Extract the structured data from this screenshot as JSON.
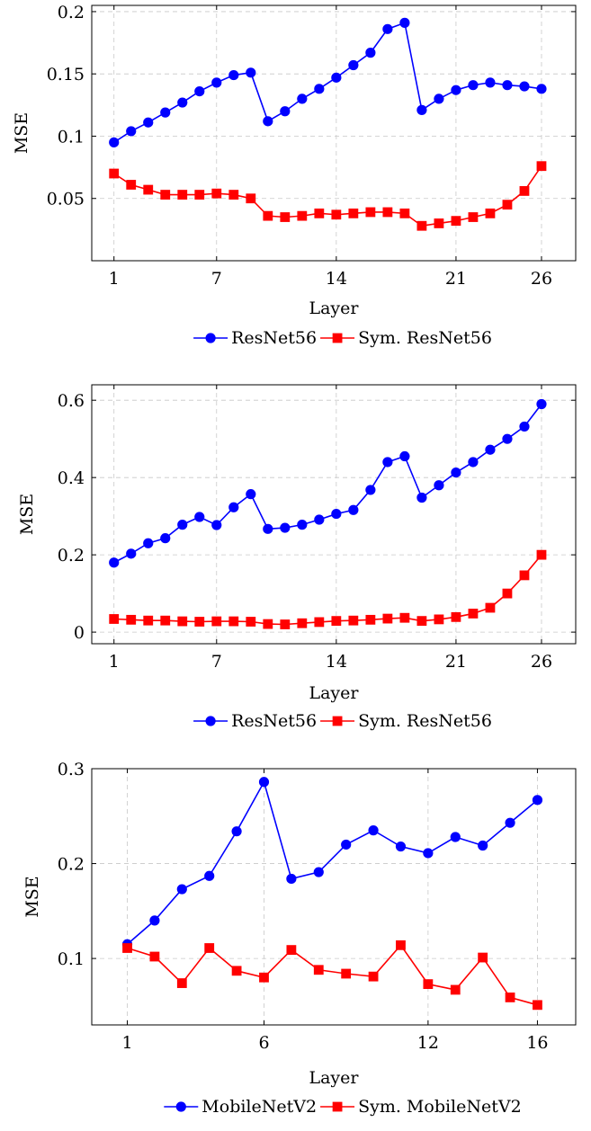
{
  "chart_data": [
    {
      "type": "line",
      "xlabel": "Layer",
      "ylabel": "MSE",
      "xlim": [
        -0.3,
        28.0
      ],
      "ylim": [
        0.0,
        0.205
      ],
      "xticks": [
        1,
        7,
        14,
        21,
        26
      ],
      "yticks": [
        0.05,
        0.1,
        0.15,
        0.2
      ],
      "ytick_labels": [
        "0.05",
        "0.1",
        "0.15",
        "0.2"
      ],
      "grid": true,
      "legend": "bottom-center",
      "x": [
        1,
        2,
        3,
        4,
        5,
        6,
        7,
        8,
        9,
        10,
        11,
        12,
        13,
        14,
        15,
        16,
        17,
        18,
        19,
        20,
        21,
        22,
        23,
        24,
        25,
        26
      ],
      "series": [
        {
          "name": "ResNet56",
          "color": "#0000ff",
          "marker": "circle",
          "values": [
            0.095,
            0.104,
            0.111,
            0.119,
            0.127,
            0.136,
            0.143,
            0.149,
            0.151,
            0.112,
            0.12,
            0.13,
            0.138,
            0.147,
            0.157,
            0.167,
            0.186,
            0.191,
            0.121,
            0.13,
            0.137,
            0.141,
            0.143,
            0.141,
            0.14,
            0.138
          ]
        },
        {
          "name": "Sym. ResNet56",
          "color": "#ff0000",
          "marker": "square",
          "values": [
            0.07,
            0.061,
            0.057,
            0.053,
            0.053,
            0.053,
            0.054,
            0.053,
            0.05,
            0.036,
            0.035,
            0.036,
            0.038,
            0.037,
            0.038,
            0.039,
            0.039,
            0.038,
            0.028,
            0.03,
            0.032,
            0.035,
            0.038,
            0.045,
            0.056,
            0.076
          ]
        }
      ]
    },
    {
      "type": "line",
      "xlabel": "Layer",
      "ylabel": "MSE",
      "xlim": [
        -0.3,
        28.0
      ],
      "ylim": [
        -0.03,
        0.64
      ],
      "xticks": [
        1,
        7,
        14,
        21,
        26
      ],
      "yticks": [
        0,
        0.2,
        0.4,
        0.6
      ],
      "ytick_labels": [
        "0",
        "0.2",
        "0.4",
        "0.6"
      ],
      "grid": true,
      "legend": "bottom-center",
      "x": [
        1,
        2,
        3,
        4,
        5,
        6,
        7,
        8,
        9,
        10,
        11,
        12,
        13,
        14,
        15,
        16,
        17,
        18,
        19,
        20,
        21,
        22,
        23,
        24,
        25,
        26
      ],
      "series": [
        {
          "name": "ResNet56",
          "color": "#0000ff",
          "marker": "circle",
          "values": [
            0.18,
            0.203,
            0.23,
            0.243,
            0.278,
            0.298,
            0.277,
            0.323,
            0.357,
            0.267,
            0.27,
            0.278,
            0.291,
            0.306,
            0.316,
            0.368,
            0.44,
            0.455,
            0.348,
            0.38,
            0.413,
            0.44,
            0.472,
            0.5,
            0.532,
            0.59
          ]
        },
        {
          "name": "Sym. ResNet56",
          "color": "#ff0000",
          "marker": "square",
          "values": [
            0.034,
            0.032,
            0.03,
            0.03,
            0.028,
            0.027,
            0.028,
            0.028,
            0.027,
            0.021,
            0.02,
            0.023,
            0.026,
            0.029,
            0.03,
            0.032,
            0.035,
            0.037,
            0.029,
            0.033,
            0.039,
            0.048,
            0.063,
            0.1,
            0.147,
            0.2
          ]
        }
      ]
    },
    {
      "type": "line",
      "xlabel": "Layer",
      "ylabel": "MSE",
      "xlim": [
        -0.3,
        17.4
      ],
      "ylim": [
        0.03,
        0.3
      ],
      "xticks": [
        1,
        6,
        12,
        16
      ],
      "yticks": [
        0.1,
        0.2,
        0.3
      ],
      "ytick_labels": [
        "0.1",
        "0.2",
        "0.3"
      ],
      "grid": true,
      "legend": "bottom-center",
      "x": [
        1,
        2,
        3,
        4,
        5,
        6,
        7,
        8,
        9,
        10,
        11,
        12,
        13,
        14,
        15,
        16
      ],
      "series": [
        {
          "name": "MobileNetV2",
          "color": "#0000ff",
          "marker": "circle",
          "values": [
            0.115,
            0.14,
            0.173,
            0.187,
            0.234,
            0.286,
            0.184,
            0.191,
            0.22,
            0.235,
            0.218,
            0.211,
            0.228,
            0.219,
            0.243,
            0.267
          ]
        },
        {
          "name": "Sym. MobileNetV2",
          "color": "#ff0000",
          "marker": "square",
          "values": [
            0.111,
            0.102,
            0.074,
            0.111,
            0.087,
            0.08,
            0.109,
            0.088,
            0.084,
            0.081,
            0.114,
            0.073,
            0.067,
            0.101,
            0.059,
            0.051
          ]
        }
      ]
    }
  ]
}
